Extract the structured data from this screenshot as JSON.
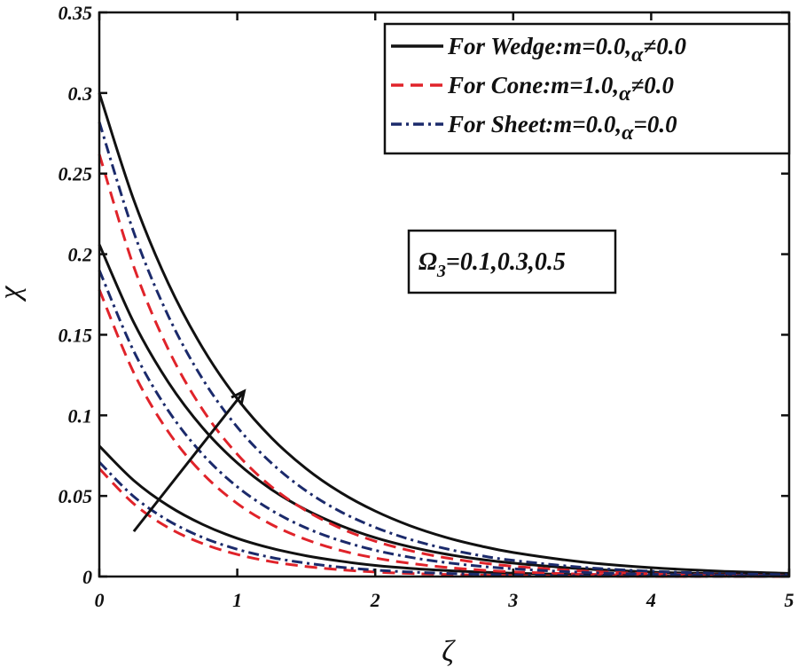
{
  "chart_data": {
    "type": "line",
    "title": "",
    "xlabel": "ζ",
    "ylabel": "χ",
    "xlim": [
      0,
      5
    ],
    "ylim": [
      0,
      0.35
    ],
    "xticks": [
      0,
      1,
      2,
      3,
      4,
      5
    ],
    "xtick_labels": [
      "0",
      "1",
      "2",
      "3",
      "4",
      "5"
    ],
    "yticks": [
      0,
      0.05,
      0.1,
      0.15,
      0.2,
      0.25,
      0.3,
      0.35
    ],
    "ytick_labels": [
      "0",
      "0.05",
      "0.1",
      "0.15",
      "0.2",
      "0.25",
      "0.3",
      "0.35"
    ],
    "grid": false,
    "legend_position": "top-right",
    "legend": [
      {
        "series_group": "wedge",
        "prefix": "For Wedge:m=0.0,",
        "symbol": "α",
        "suffix": "≠0.0",
        "color": "#111111",
        "style": "solid"
      },
      {
        "series_group": "cone",
        "prefix": "For Cone:m=1.0,",
        "symbol": "α",
        "suffix": "≠0.0",
        "color": "#e0232a",
        "style": "dashed"
      },
      {
        "series_group": "sheet",
        "prefix": "For Sheet:m=0.0,",
        "symbol": "α",
        "suffix": "=0.0",
        "color": "#1b2a6b",
        "style": "dashdot"
      }
    ],
    "annotation": {
      "symbol": "Ω",
      "subscript": "3",
      "text": "=0.1,0.3,0.5"
    },
    "arrow": {
      "from": [
        0.25,
        0.028
      ],
      "to": [
        1.05,
        0.115
      ]
    },
    "x": [
      0,
      0.25,
      0.5,
      0.75,
      1,
      1.25,
      1.5,
      1.75,
      2,
      2.25,
      2.5,
      2.75,
      3,
      3.5,
      4,
      4.5,
      5
    ],
    "series": [
      {
        "name": "Wedge Ω3=0.1",
        "group": "wedge",
        "values": [
          0.081,
          0.0596,
          0.0439,
          0.0323,
          0.0237,
          0.0175,
          0.0129,
          0.0095,
          0.0069,
          0.0051,
          0.0038,
          0.0028,
          0.0021,
          0.0011,
          0.0006,
          0.0003,
          0.0002
        ]
      },
      {
        "name": "Wedge Ω3=0.3",
        "group": "wedge",
        "values": [
          0.206,
          0.1576,
          0.1206,
          0.0922,
          0.0705,
          0.0539,
          0.0413,
          0.0316,
          0.0241,
          0.0185,
          0.0141,
          0.0108,
          0.0083,
          0.0048,
          0.0028,
          0.0016,
          0.0009
        ]
      },
      {
        "name": "Wedge Ω3=0.5",
        "group": "wedge",
        "values": [
          0.3,
          0.2336,
          0.1819,
          0.1417,
          0.1103,
          0.0859,
          0.0669,
          0.0521,
          0.0406,
          0.0316,
          0.0246,
          0.0192,
          0.0149,
          0.009,
          0.0055,
          0.0033,
          0.002
        ]
      },
      {
        "name": "Cone Ω3=0.1",
        "group": "cone",
        "values": [
          0.067,
          0.0451,
          0.0303,
          0.0204,
          0.0137,
          0.0092,
          0.0062,
          0.0042,
          0.0028,
          0.0019,
          0.0013,
          0.0009,
          0.0006,
          0.0003,
          0.0001,
          0.0001,
          0.0
        ]
      },
      {
        "name": "Cone Ω3=0.3",
        "group": "cone",
        "values": [
          0.178,
          0.1264,
          0.0898,
          0.0638,
          0.0453,
          0.0322,
          0.0229,
          0.0162,
          0.0115,
          0.0082,
          0.0058,
          0.0041,
          0.0029,
          0.0015,
          0.0007,
          0.0004,
          0.0002
        ]
      },
      {
        "name": "Cone Ω3=0.5",
        "group": "cone",
        "values": [
          0.262,
          0.1922,
          0.141,
          0.1034,
          0.0759,
          0.0556,
          0.0408,
          0.0299,
          0.0219,
          0.0161,
          0.0118,
          0.0087,
          0.0064,
          0.0034,
          0.0018,
          0.001,
          0.0005
        ]
      },
      {
        "name": "Sheet Ω3=0.1",
        "group": "sheet",
        "values": [
          0.071,
          0.0496,
          0.0347,
          0.0242,
          0.0169,
          0.0118,
          0.0083,
          0.0058,
          0.004,
          0.0028,
          0.002,
          0.0014,
          0.001,
          0.0005,
          0.0002,
          0.0001,
          0.0001
        ]
      },
      {
        "name": "Sheet Ω3=0.3",
        "group": "sheet",
        "values": [
          0.19,
          0.1398,
          0.1029,
          0.0757,
          0.0557,
          0.041,
          0.0301,
          0.0222,
          0.0163,
          0.012,
          0.0088,
          0.0065,
          0.0048,
          0.0026,
          0.0014,
          0.0008,
          0.0004
        ]
      },
      {
        "name": "Sheet Ω3=0.5",
        "group": "sheet",
        "values": [
          0.282,
          0.2135,
          0.1617,
          0.1224,
          0.0927,
          0.0702,
          0.0531,
          0.0402,
          0.0305,
          0.0231,
          0.0175,
          0.0132,
          0.01,
          0.0057,
          0.0033,
          0.0019,
          0.0011
        ]
      }
    ]
  }
}
